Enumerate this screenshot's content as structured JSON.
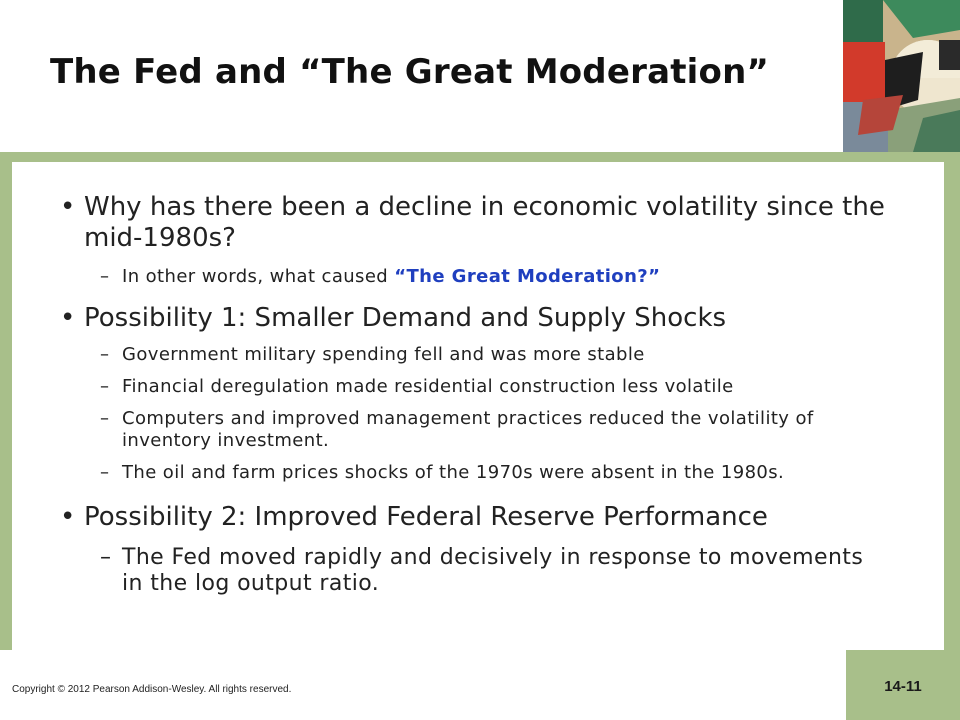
{
  "slide": {
    "title": "The Fed and “The Great Moderation”",
    "bullets": [
      {
        "text": "Why has there been a decline in economic volatility since the mid-1980s?",
        "subs": [
          {
            "prefix": "In other words, what caused ",
            "highlight": "“The Great Moderation?”"
          }
        ]
      },
      {
        "text": "Possibility 1:  Smaller Demand and Supply Shocks",
        "subs": [
          {
            "text": "Government military spending fell and was more stable"
          },
          {
            "text": "Financial deregulation made residential construction less volatile"
          },
          {
            "text": "Computers and improved management practices reduced the volatility of inventory investment."
          },
          {
            "text": "The oil and farm prices shocks of the 1970s were absent in the 1980s."
          }
        ]
      },
      {
        "text": "Possibility 2:  Improved Federal Reserve Performance",
        "subs": [
          {
            "text": "The Fed moved rapidly and decisively in response to movements in the log output ratio."
          }
        ]
      }
    ],
    "footer": "Copyright © 2012 Pearson Addison-Wesley. All rights reserved.",
    "page_number": "14-11"
  },
  "colors": {
    "frame": "#a8bf8a",
    "highlight": "#1f3fbf",
    "text": "#222222"
  },
  "icons": {
    "bullet": "bullet-dot",
    "sub_bullet": "en-dash"
  }
}
